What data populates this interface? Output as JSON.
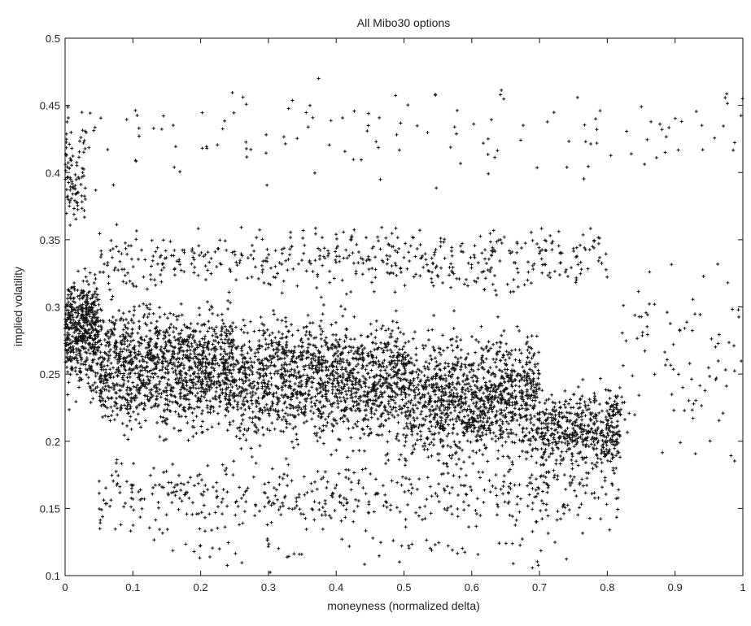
{
  "chart_data": {
    "type": "scatter",
    "title": "All Mibo30 options",
    "xlabel": "moneyness (normalized delta)",
    "ylabel": "implied volatility",
    "xlim": [
      0,
      1
    ],
    "ylim": [
      0.1,
      0.5
    ],
    "xticks": [
      "0",
      "0.1",
      "0.2",
      "0.3",
      "0.4",
      "0.5",
      "0.6",
      "0.7",
      "0.8",
      "0.9",
      "1"
    ],
    "yticks": [
      "0.1",
      "0.15",
      "0.2",
      "0.25",
      "0.3",
      "0.35",
      "0.4",
      "0.45",
      "0.5"
    ],
    "grid": false,
    "legend": "none",
    "marker": "+",
    "marker_color": "#111111",
    "series_clusters": [
      {
        "x_range": [
          0,
          0.05
        ],
        "y_range": [
          0.22,
          0.34
        ],
        "count": 520
      },
      {
        "x_range": [
          0,
          0.03
        ],
        "y_range": [
          0.34,
          0.45
        ],
        "count": 90
      },
      {
        "x_range": [
          0.05,
          0.25
        ],
        "y_range": [
          0.19,
          0.32
        ],
        "count": 1300
      },
      {
        "x_range": [
          0.25,
          0.5
        ],
        "y_range": [
          0.18,
          0.31
        ],
        "count": 1400
      },
      {
        "x_range": [
          0.5,
          0.7
        ],
        "y_range": [
          0.165,
          0.3
        ],
        "count": 1200
      },
      {
        "x_range": [
          0.7,
          0.82
        ],
        "y_range": [
          0.165,
          0.25
        ],
        "count": 500
      },
      {
        "x_range": [
          0.05,
          0.8
        ],
        "y_range": [
          0.3,
          0.37
        ],
        "count": 500
      },
      {
        "x_range": [
          0.05,
          0.82
        ],
        "y_range": [
          0.12,
          0.2
        ],
        "count": 500
      },
      {
        "x_range": [
          0,
          1
        ],
        "y_range": [
          0.37,
          0.49
        ],
        "count": 140
      },
      {
        "x_range": [
          0.82,
          1
        ],
        "y_range": [
          0.15,
          0.37
        ],
        "count": 90
      },
      {
        "x_range": [
          0.15,
          0.75
        ],
        "y_range": [
          0.1,
          0.14
        ],
        "count": 60
      }
    ]
  }
}
